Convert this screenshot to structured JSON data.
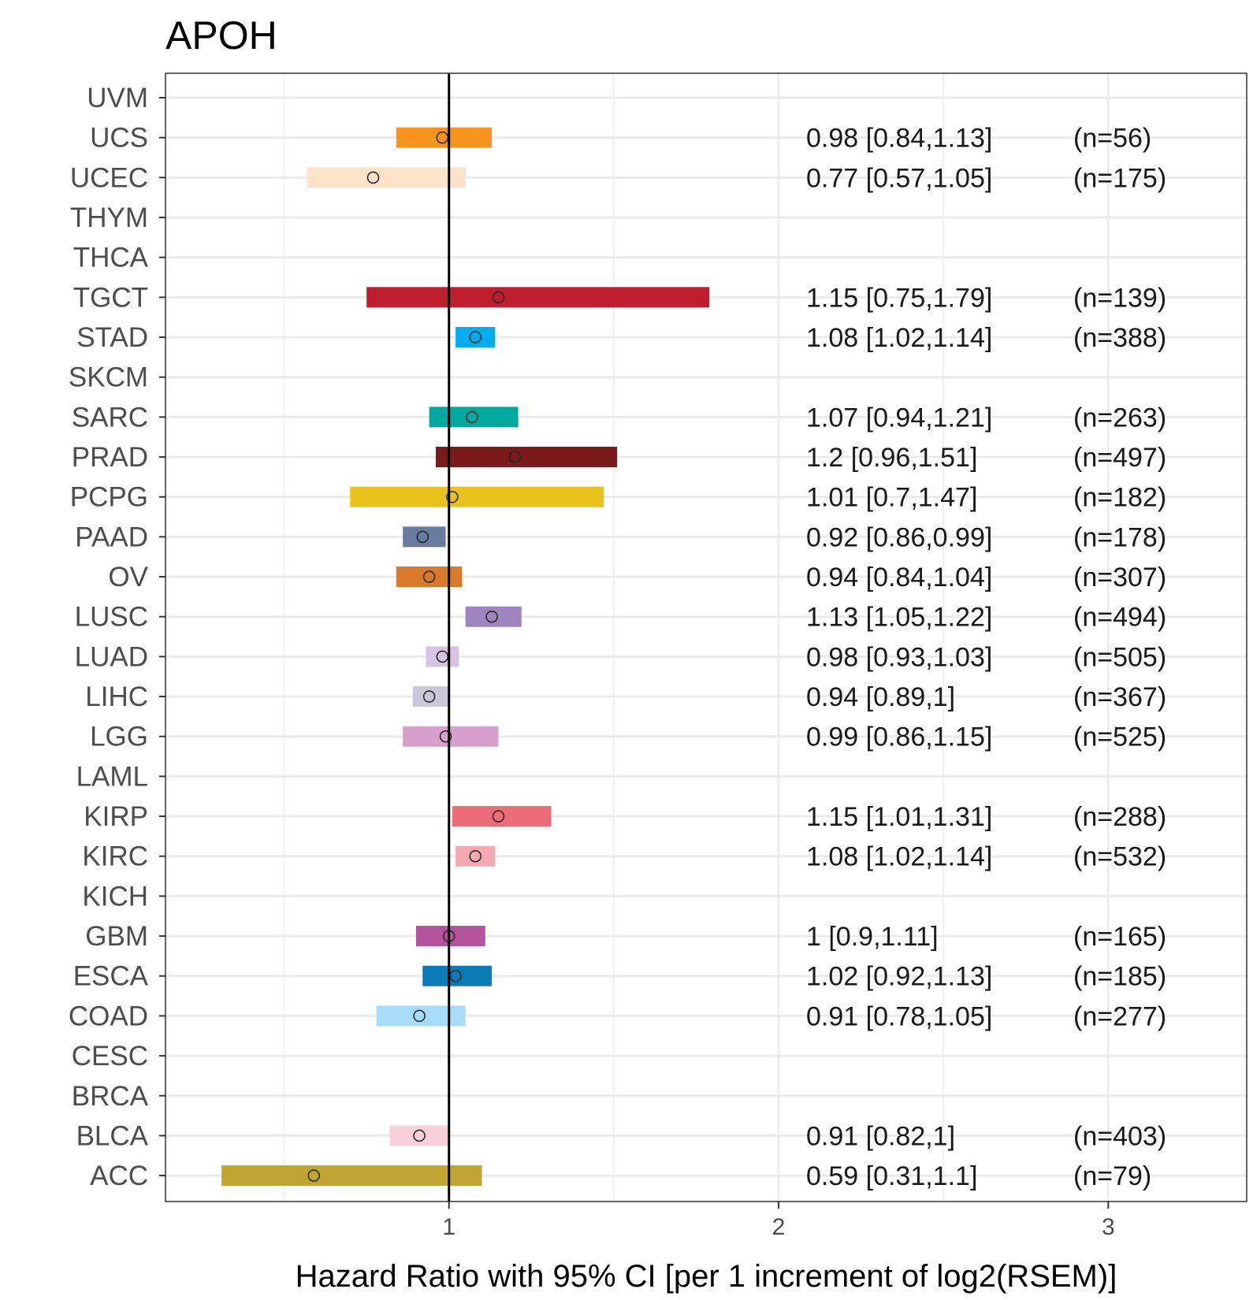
{
  "chart_data": {
    "type": "forest",
    "title": "APOH",
    "xlabel": "Hazard Ratio with 95% CI [per 1 increment of log2(RSEM)]",
    "ylabel": "",
    "xlim": [
      0.14,
      3.42
    ],
    "xticks": [
      1,
      2,
      3
    ],
    "xtick_labels": [
      "1",
      "2",
      "3"
    ],
    "reference_line": 1,
    "grid": true,
    "categories": [
      "UVM",
      "UCS",
      "UCEC",
      "THYM",
      "THCA",
      "TGCT",
      "STAD",
      "SKCM",
      "SARC",
      "PRAD",
      "PCPG",
      "PAAD",
      "OV",
      "LUSC",
      "LUAD",
      "LIHC",
      "LGG",
      "LAML",
      "KIRP",
      "KIRC",
      "KICH",
      "GBM",
      "ESCA",
      "COAD",
      "CESC",
      "BRCA",
      "BLCA",
      "ACC"
    ],
    "rows": [
      {
        "name": "UVM",
        "hr": null,
        "low": null,
        "high": null,
        "label": "",
        "n_label": "",
        "color": ""
      },
      {
        "name": "UCS",
        "hr": 0.98,
        "low": 0.84,
        "high": 1.13,
        "label": "0.98 [0.84,1.13]",
        "n_label": "(n=56)",
        "color": "#F7941D"
      },
      {
        "name": "UCEC",
        "hr": 0.77,
        "low": 0.57,
        "high": 1.05,
        "label": "0.77 [0.57,1.05]",
        "n_label": "(n=175)",
        "color": "#FCE2C8"
      },
      {
        "name": "THYM",
        "hr": null,
        "low": null,
        "high": null,
        "label": "",
        "n_label": "",
        "color": ""
      },
      {
        "name": "THCA",
        "hr": null,
        "low": null,
        "high": null,
        "label": "",
        "n_label": "",
        "color": ""
      },
      {
        "name": "TGCT",
        "hr": 1.15,
        "low": 0.75,
        "high": 1.79,
        "label": "1.15 [0.75,1.79]",
        "n_label": "(n=139)",
        "color": "#BE1E2D"
      },
      {
        "name": "STAD",
        "hr": 1.08,
        "low": 1.02,
        "high": 1.14,
        "label": "1.08 [1.02,1.14]",
        "n_label": "(n=388)",
        "color": "#00AEEF"
      },
      {
        "name": "SKCM",
        "hr": null,
        "low": null,
        "high": null,
        "label": "",
        "n_label": "",
        "color": ""
      },
      {
        "name": "SARC",
        "hr": 1.07,
        "low": 0.94,
        "high": 1.21,
        "label": "1.07 [0.94,1.21]",
        "n_label": "(n=263)",
        "color": "#00A99D"
      },
      {
        "name": "PRAD",
        "hr": 1.2,
        "low": 0.96,
        "high": 1.51,
        "label": "1.2 [0.96,1.51]",
        "n_label": "(n=497)",
        "color": "#7B1A1A"
      },
      {
        "name": "PCPG",
        "hr": 1.01,
        "low": 0.7,
        "high": 1.47,
        "label": "1.01 [0.7,1.47]",
        "n_label": "(n=182)",
        "color": "#E8C31B"
      },
      {
        "name": "PAAD",
        "hr": 0.92,
        "low": 0.86,
        "high": 0.99,
        "label": "0.92 [0.86,0.99]",
        "n_label": "(n=178)",
        "color": "#6A7BA2"
      },
      {
        "name": "OV",
        "hr": 0.94,
        "low": 0.84,
        "high": 1.04,
        "label": "0.94 [0.84,1.04]",
        "n_label": "(n=307)",
        "color": "#D9792A"
      },
      {
        "name": "LUSC",
        "hr": 1.13,
        "low": 1.05,
        "high": 1.22,
        "label": "1.13 [1.05,1.22]",
        "n_label": "(n=494)",
        "color": "#9E85BE"
      },
      {
        "name": "LUAD",
        "hr": 0.98,
        "low": 0.93,
        "high": 1.03,
        "label": "0.98 [0.93,1.03]",
        "n_label": "(n=505)",
        "color": "#D5C3E0"
      },
      {
        "name": "LIHC",
        "hr": 0.94,
        "low": 0.89,
        "high": 1,
        "label": "0.94 [0.89,1]",
        "n_label": "(n=367)",
        "color": "#C8C8D8"
      },
      {
        "name": "LGG",
        "hr": 0.99,
        "low": 0.86,
        "high": 1.15,
        "label": "0.99 [0.86,1.15]",
        "n_label": "(n=525)",
        "color": "#D6A0CA"
      },
      {
        "name": "LAML",
        "hr": null,
        "low": null,
        "high": null,
        "label": "",
        "n_label": "",
        "color": ""
      },
      {
        "name": "KIRP",
        "hr": 1.15,
        "low": 1.01,
        "high": 1.31,
        "label": "1.15 [1.01,1.31]",
        "n_label": "(n=288)",
        "color": "#EB6B77"
      },
      {
        "name": "KIRC",
        "hr": 1.08,
        "low": 1.02,
        "high": 1.14,
        "label": "1.08 [1.02,1.14]",
        "n_label": "(n=532)",
        "color": "#F4A8B0"
      },
      {
        "name": "KICH",
        "hr": null,
        "low": null,
        "high": null,
        "label": "",
        "n_label": "",
        "color": ""
      },
      {
        "name": "GBM",
        "hr": 1,
        "low": 0.9,
        "high": 1.11,
        "label": "1 [0.9,1.11]",
        "n_label": "(n=165)",
        "color": "#B5529E"
      },
      {
        "name": "ESCA",
        "hr": 1.02,
        "low": 0.92,
        "high": 1.13,
        "label": "1.02 [0.92,1.13]",
        "n_label": "(n=185)",
        "color": "#0A7CB5"
      },
      {
        "name": "COAD",
        "hr": 0.91,
        "low": 0.78,
        "high": 1.05,
        "label": "0.91 [0.78,1.05]",
        "n_label": "(n=277)",
        "color": "#A6DCF7"
      },
      {
        "name": "CESC",
        "hr": null,
        "low": null,
        "high": null,
        "label": "",
        "n_label": "",
        "color": ""
      },
      {
        "name": "BRCA",
        "hr": null,
        "low": null,
        "high": null,
        "label": "",
        "n_label": "",
        "color": ""
      },
      {
        "name": "BLCA",
        "hr": 0.91,
        "low": 0.82,
        "high": 1,
        "label": "0.91 [0.82,1]",
        "n_label": "(n=403)",
        "color": "#F8D0D8"
      },
      {
        "name": "ACC",
        "hr": 0.59,
        "low": 0.31,
        "high": 1.1,
        "label": "0.59 [0.31,1.1]",
        "n_label": "(n=79)",
        "color": "#C0A630"
      }
    ]
  }
}
